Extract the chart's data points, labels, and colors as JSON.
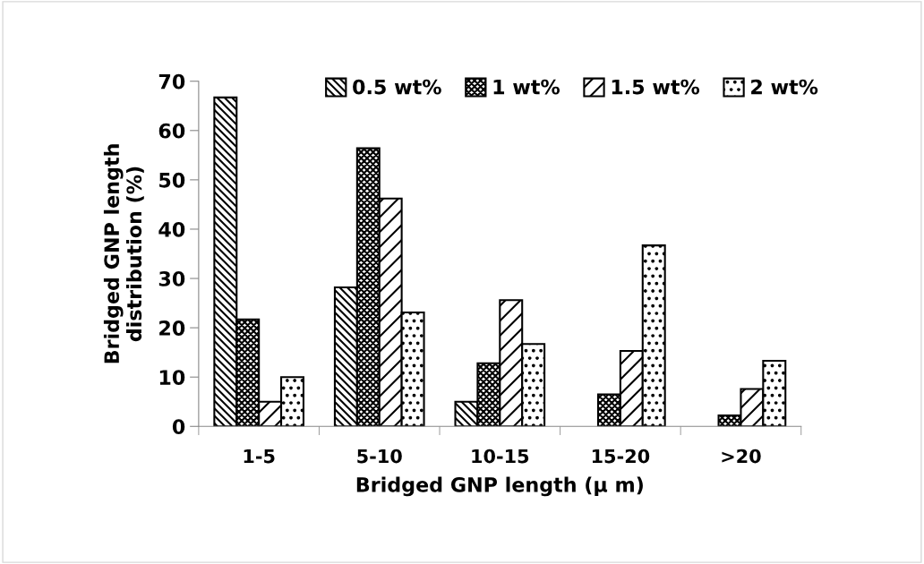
{
  "chart_data": {
    "type": "bar",
    "xlabel": "Bridged GNP length (μ m)",
    "ylabel": "Bridged GNP length\ndistribution (%)",
    "categories": [
      "1-5",
      "5-10",
      "10-15",
      "15-20",
      ">20"
    ],
    "series": [
      {
        "name": "0.5 wt%",
        "color": "#000000",
        "values": [
          66.7,
          28.2,
          5,
          null,
          null
        ]
      },
      {
        "name": "1 wt%",
        "color": "#000000",
        "values": [
          21.7,
          56.4,
          12.8,
          6.5,
          2.2
        ]
      },
      {
        "name": "1.5 wt%",
        "color": "#000000",
        "values": [
          5,
          46.2,
          25.6,
          15.3,
          7.6
        ]
      },
      {
        "name": "2 wt%",
        "color": "#000000",
        "values": [
          10,
          23.1,
          16.7,
          36.7,
          13.3
        ]
      }
    ],
    "ylim": [
      0,
      70
    ],
    "yticks": [
      0,
      10,
      20,
      30,
      40,
      50,
      60,
      70
    ],
    "grid": false,
    "legend": "top"
  }
}
